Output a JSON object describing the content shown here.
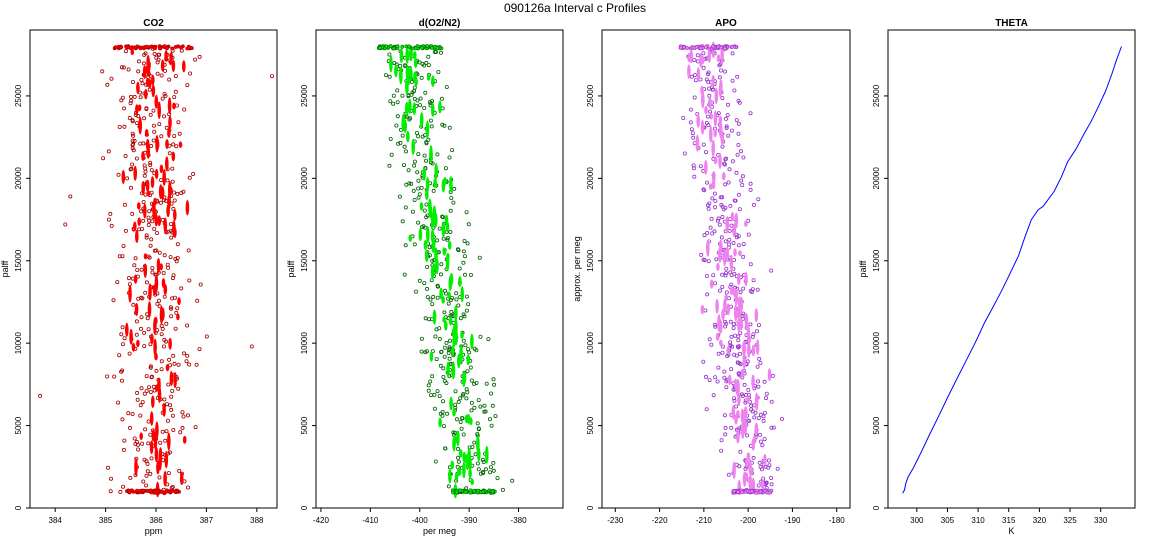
{
  "page_title": "090126a   Interval c Profiles",
  "charts": [
    {
      "id": "co2",
      "type": "scatter",
      "title": "CO2",
      "xlabel": "ppm",
      "ylabel": "palff",
      "xlim": [
        383.5,
        388.4
      ],
      "ylim": [
        0,
        29000
      ],
      "xticks": [
        384,
        385,
        386,
        387,
        388
      ],
      "yticks": [
        0,
        5000,
        10000,
        15000,
        20000,
        25000
      ],
      "series": [
        {
          "color": "#ff0000",
          "outline": "#aa0000",
          "center": 385.95,
          "spread": 0.55,
          "outliers": [
            383.7,
            384.3,
            387.9,
            388.3,
            384.2
          ],
          "shift": 0.0
        }
      ]
    },
    {
      "id": "do2n2",
      "type": "scatter",
      "title": "d(O2/N2)",
      "xlabel": "per meg",
      "ylabel": "palff",
      "xlim": [
        -421,
        -371
      ],
      "ylim": [
        0,
        29000
      ],
      "xticks": [
        -420,
        -410,
        -400,
        -390,
        -380
      ],
      "yticks": [
        0,
        5000,
        10000,
        15000,
        20000,
        25000
      ],
      "series": [
        {
          "color": "#00ee00",
          "outline": "#006600",
          "center_top": -402,
          "center_bottom": -389,
          "spread": 4.5
        }
      ]
    },
    {
      "id": "apo",
      "type": "scatter",
      "title": "APO",
      "xlabel": "",
      "ylabel": "approx. per meg",
      "xlim": [
        -233,
        -177
      ],
      "ylim": [
        0,
        29000
      ],
      "xticks": [
        -230,
        -220,
        -210,
        -200,
        -190,
        -180
      ],
      "yticks": [
        0,
        5000,
        10000,
        15000,
        20000,
        25000
      ],
      "series": [
        {
          "color": "#ee82ee",
          "outline": "#9932cc",
          "center_top": -209,
          "center_bottom": -199,
          "spread": 4.5
        }
      ]
    },
    {
      "id": "theta",
      "type": "line",
      "title": "THETA",
      "xlabel": "K",
      "ylabel": "palff",
      "xlim": [
        295.3,
        335.6
      ],
      "ylim": [
        0,
        29000
      ],
      "xticks": [
        300,
        305,
        310,
        315,
        320,
        325,
        330
      ],
      "yticks": [
        0,
        5000,
        10000,
        15000,
        20000,
        25000
      ],
      "series": [
        {
          "color": "#0000ff",
          "x": [
            297.7,
            298.0,
            298.2,
            298.6,
            299.4,
            300.6,
            302.0,
            303.6,
            305.0,
            306.5,
            308.0,
            309.5,
            311.0,
            312.6,
            314.0,
            315.3,
            316.6,
            317.6,
            318.7,
            319.8,
            320.6,
            321.2,
            322.4,
            323.6,
            324.6,
            326.0,
            327.3,
            328.5,
            329.7,
            330.8,
            331.8,
            332.6,
            333.4
          ],
          "y": [
            900,
            1100,
            1500,
            1900,
            2400,
            3300,
            4400,
            5600,
            6700,
            7800,
            8900,
            10000,
            11200,
            12300,
            13300,
            14300,
            15300,
            16400,
            17500,
            18100,
            18300,
            18600,
            19200,
            20100,
            21000,
            21800,
            22700,
            23500,
            24400,
            25300,
            26300,
            27200,
            28000
          ]
        }
      ]
    }
  ],
  "chart_data": [
    {
      "type": "scatter",
      "title": "CO2",
      "xlabel": "ppm",
      "ylabel": "palff",
      "xlim": [
        383.5,
        388.4
      ],
      "ylim": [
        0,
        29000
      ],
      "series": [
        {
          "x_center": 385.95,
          "x_spread": 0.55,
          "y_range": [
            900,
            28000
          ]
        }
      ]
    },
    {
      "type": "scatter",
      "title": "d(O2/N2)",
      "xlabel": "per meg",
      "ylabel": "palff",
      "xlim": [
        -421,
        -371
      ],
      "ylim": [
        0,
        29000
      ],
      "series": [
        {
          "x_center_top": -402,
          "x_center_bottom": -389,
          "y_range": [
            900,
            28000
          ]
        }
      ]
    },
    {
      "type": "scatter",
      "title": "APO",
      "xlabel": "",
      "ylabel": "approx. per meg",
      "xlim": [
        -233,
        -177
      ],
      "ylim": [
        0,
        29000
      ],
      "series": [
        {
          "x_center_top": -209,
          "x_center_bottom": -199,
          "y_range": [
            900,
            28000
          ]
        }
      ]
    },
    {
      "type": "line",
      "title": "THETA",
      "xlabel": "K",
      "ylabel": "palff",
      "xlim": [
        295.3,
        335.6
      ],
      "ylim": [
        0,
        29000
      ],
      "series": [
        {
          "x_range": [
            297.7,
            333.4
          ],
          "y_range": [
            900,
            28000
          ]
        }
      ]
    }
  ]
}
